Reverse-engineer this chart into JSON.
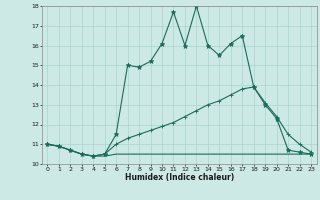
{
  "xlabel": "Humidex (Indice chaleur)",
  "xlim": [
    -0.5,
    23.5
  ],
  "ylim": [
    10,
    18
  ],
  "yticks": [
    10,
    11,
    12,
    13,
    14,
    15,
    16,
    17,
    18
  ],
  "xticks": [
    0,
    1,
    2,
    3,
    4,
    5,
    6,
    7,
    8,
    9,
    10,
    11,
    12,
    13,
    14,
    15,
    16,
    17,
    18,
    19,
    20,
    21,
    22,
    23
  ],
  "bg_color": "#cce9e5",
  "grid_color": "#aad4cf",
  "line_color": "#1a6b5a",
  "line1_x": [
    0,
    1,
    2,
    3,
    4,
    5,
    6,
    7,
    8,
    9,
    10,
    11,
    12,
    13,
    14,
    15,
    16,
    17,
    18,
    19,
    20,
    21,
    22,
    23
  ],
  "line1_y": [
    11.0,
    10.9,
    10.7,
    10.5,
    10.4,
    10.5,
    11.5,
    15.0,
    14.9,
    15.2,
    16.1,
    17.7,
    16.0,
    18.0,
    16.0,
    15.5,
    16.1,
    16.5,
    13.9,
    13.0,
    12.3,
    10.7,
    10.6,
    10.5
  ],
  "line2_x": [
    0,
    1,
    2,
    3,
    4,
    5,
    6,
    7,
    8,
    9,
    10,
    11,
    12,
    13,
    14,
    15,
    16,
    17,
    18,
    19,
    20,
    21,
    22,
    23
  ],
  "line2_y": [
    11.0,
    10.9,
    10.7,
    10.5,
    10.4,
    10.5,
    11.0,
    11.3,
    11.5,
    11.7,
    11.9,
    12.1,
    12.4,
    12.7,
    13.0,
    13.2,
    13.5,
    13.8,
    13.9,
    13.1,
    12.4,
    11.5,
    11.0,
    10.6
  ],
  "line3_x": [
    0,
    1,
    2,
    3,
    4,
    5,
    6,
    7,
    8,
    9,
    10,
    11,
    12,
    13,
    14,
    15,
    16,
    17,
    18,
    19,
    20,
    21,
    22,
    23
  ],
  "line3_y": [
    11.0,
    10.9,
    10.7,
    10.5,
    10.4,
    10.4,
    10.5,
    10.5,
    10.5,
    10.5,
    10.5,
    10.5,
    10.5,
    10.5,
    10.5,
    10.5,
    10.5,
    10.5,
    10.5,
    10.5,
    10.5,
    10.5,
    10.5,
    10.5
  ]
}
